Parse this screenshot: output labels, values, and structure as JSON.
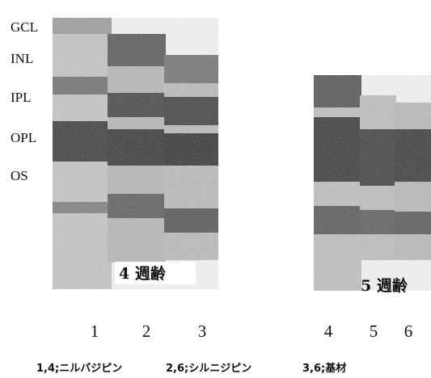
{
  "layer_labels": [
    "GCL",
    "INL",
    "IPL",
    "OPL",
    "OS"
  ],
  "groups": [
    "4 週齢",
    "5 週齢"
  ],
  "lanes": [
    "1",
    "2",
    "3",
    "4",
    "5",
    "6"
  ],
  "legend": [
    "1,4;ニルバジピン",
    "2,6;シルニジピン",
    "3,6;基材"
  ]
}
